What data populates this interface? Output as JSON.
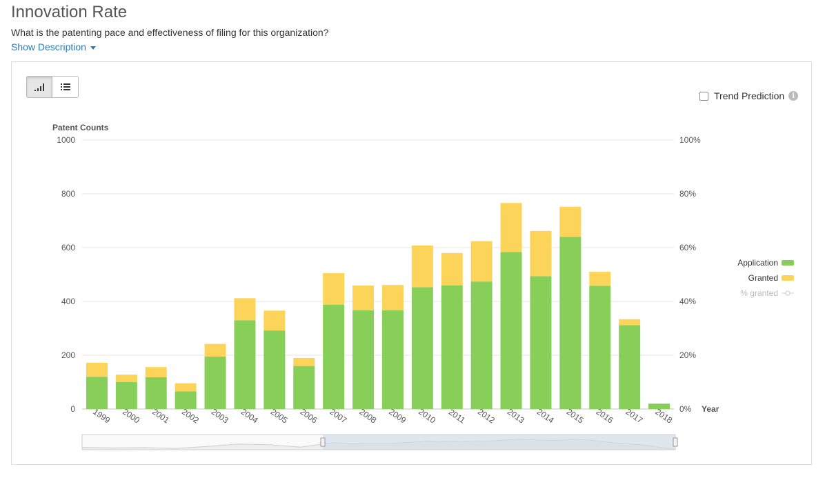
{
  "header": {
    "title": "Innovation Rate",
    "subtitle": "What is the patenting pace and effectiveness of filing for this organization?",
    "show_description": "Show Description"
  },
  "toolbar": {
    "chart_view_icon": "bar-chart-icon",
    "table_view_icon": "list-icon",
    "trend_label": "Trend Prediction",
    "trend_checked": false,
    "info_icon": "info-icon"
  },
  "colors": {
    "application": "#88cf5a",
    "granted": "#fcd45a",
    "percent_granted": "#cccccc",
    "grid": "#e6e6e6",
    "navigator_fill": "#cfd8e6"
  },
  "chart_data": {
    "type": "bar",
    "stacked": true,
    "ylabel": "Patent Counts",
    "xlabel": "Year",
    "ylim": [
      0,
      1000
    ],
    "y_ticks": [
      "0",
      "200",
      "400",
      "600",
      "800",
      "1000"
    ],
    "y2_ticks": [
      "0%",
      "20%",
      "40%",
      "60%",
      "80%",
      "100%"
    ],
    "categories": [
      "1999",
      "2000",
      "2001",
      "2002",
      "2003",
      "2004",
      "2005",
      "2006",
      "2007",
      "2008",
      "2009",
      "2010",
      "2011",
      "2012",
      "2013",
      "2014",
      "2015",
      "2016",
      "2017",
      "2018"
    ],
    "series": [
      {
        "name": "Application",
        "values": [
          120,
          100,
          118,
          66,
          195,
          330,
          292,
          160,
          388,
          367,
          367,
          453,
          460,
          474,
          584,
          494,
          640,
          458,
          312,
          20
        ]
      },
      {
        "name": "Granted",
        "values": [
          52,
          28,
          38,
          30,
          47,
          82,
          74,
          30,
          117,
          92,
          94,
          155,
          120,
          150,
          182,
          168,
          112,
          52,
          22,
          0
        ]
      }
    ],
    "legend": [
      "Application",
      "Granted",
      "% granted"
    ],
    "legend_position": "right",
    "grid": true
  }
}
